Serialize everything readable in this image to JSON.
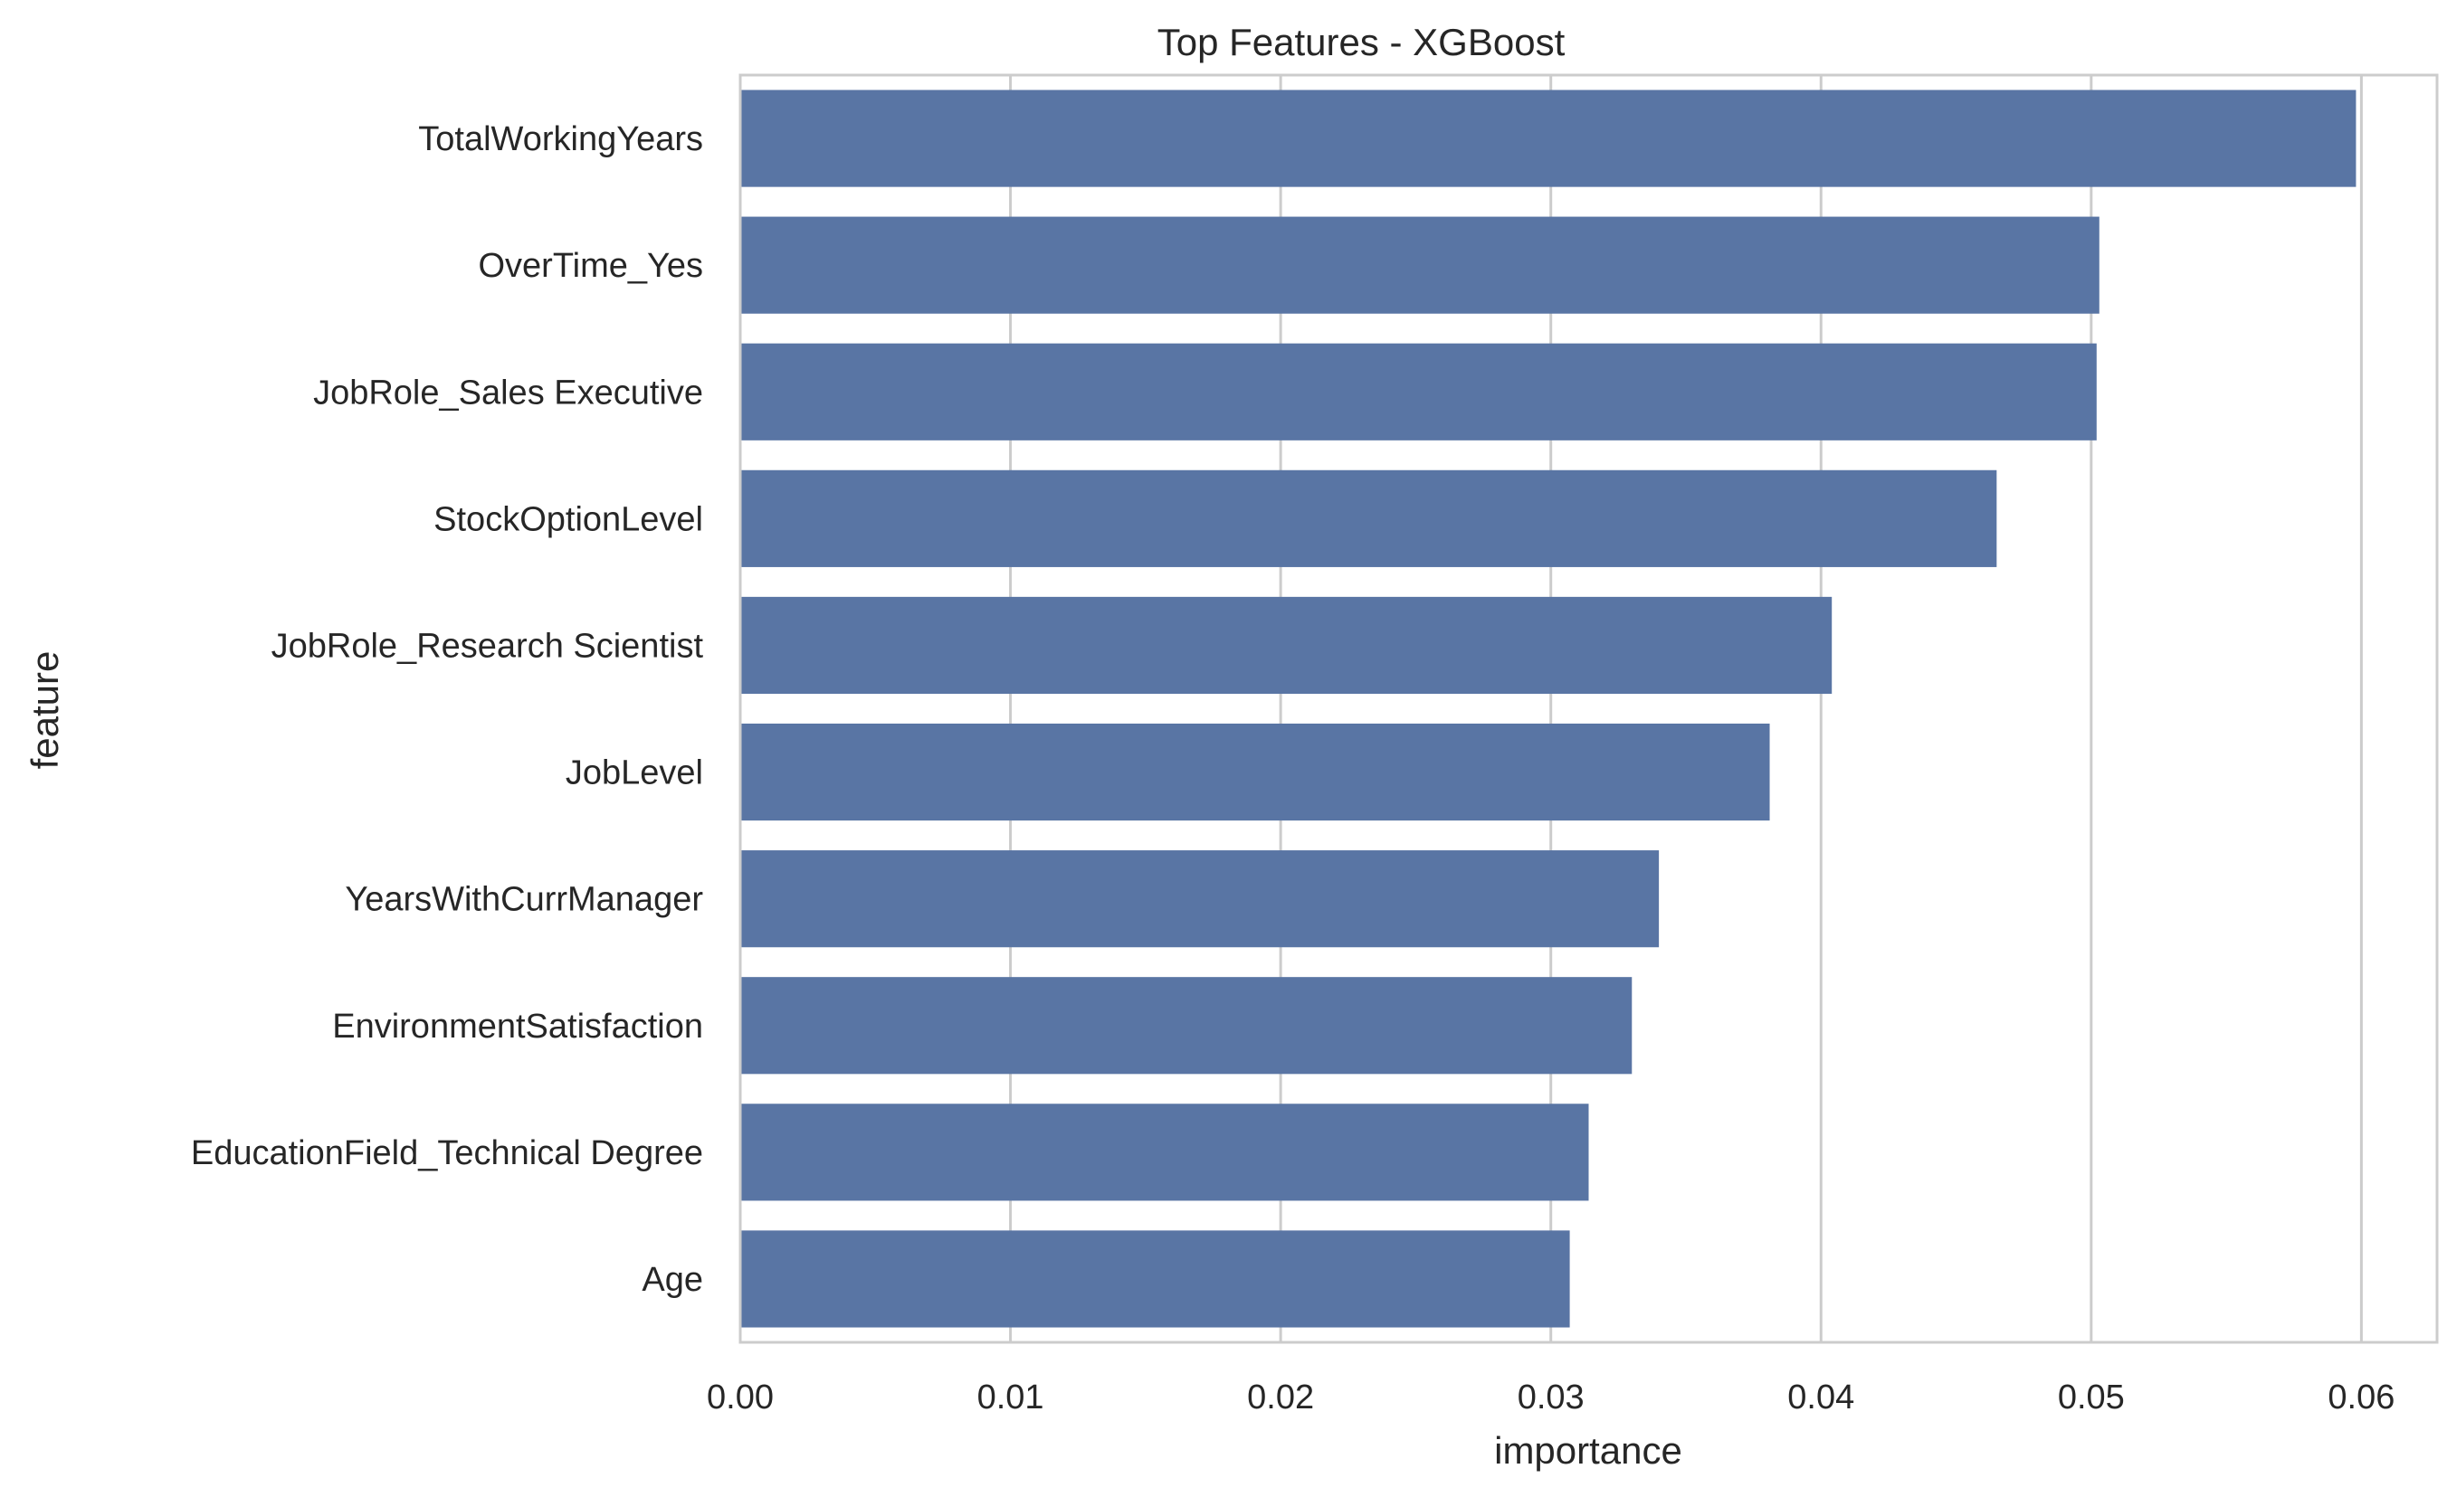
{
  "chart_data": {
    "type": "bar",
    "orientation": "horizontal",
    "title": "Top Features - XGBoost",
    "xlabel": "importance",
    "ylabel": "feature",
    "xlim": [
      0.0,
      0.0628
    ],
    "xticks": [
      "0.00",
      "0.01",
      "0.02",
      "0.03",
      "0.04",
      "0.05",
      "0.06"
    ],
    "grid": true,
    "bar_color": "#5975a4",
    "grid_color": "#cccccc",
    "categories": [
      "TotalWorkingYears",
      "OverTime_Yes",
      "JobRole_Sales Executive",
      "StockOptionLevel",
      "JobRole_Research Scientist",
      "JobLevel",
      "YearsWithCurrManager",
      "EnvironmentSatisfaction",
      "EducationField_Technical Degree",
      "Age"
    ],
    "values": [
      0.0598,
      0.0503,
      0.0502,
      0.0465,
      0.0404,
      0.0381,
      0.034,
      0.033,
      0.0314,
      0.0307
    ]
  }
}
